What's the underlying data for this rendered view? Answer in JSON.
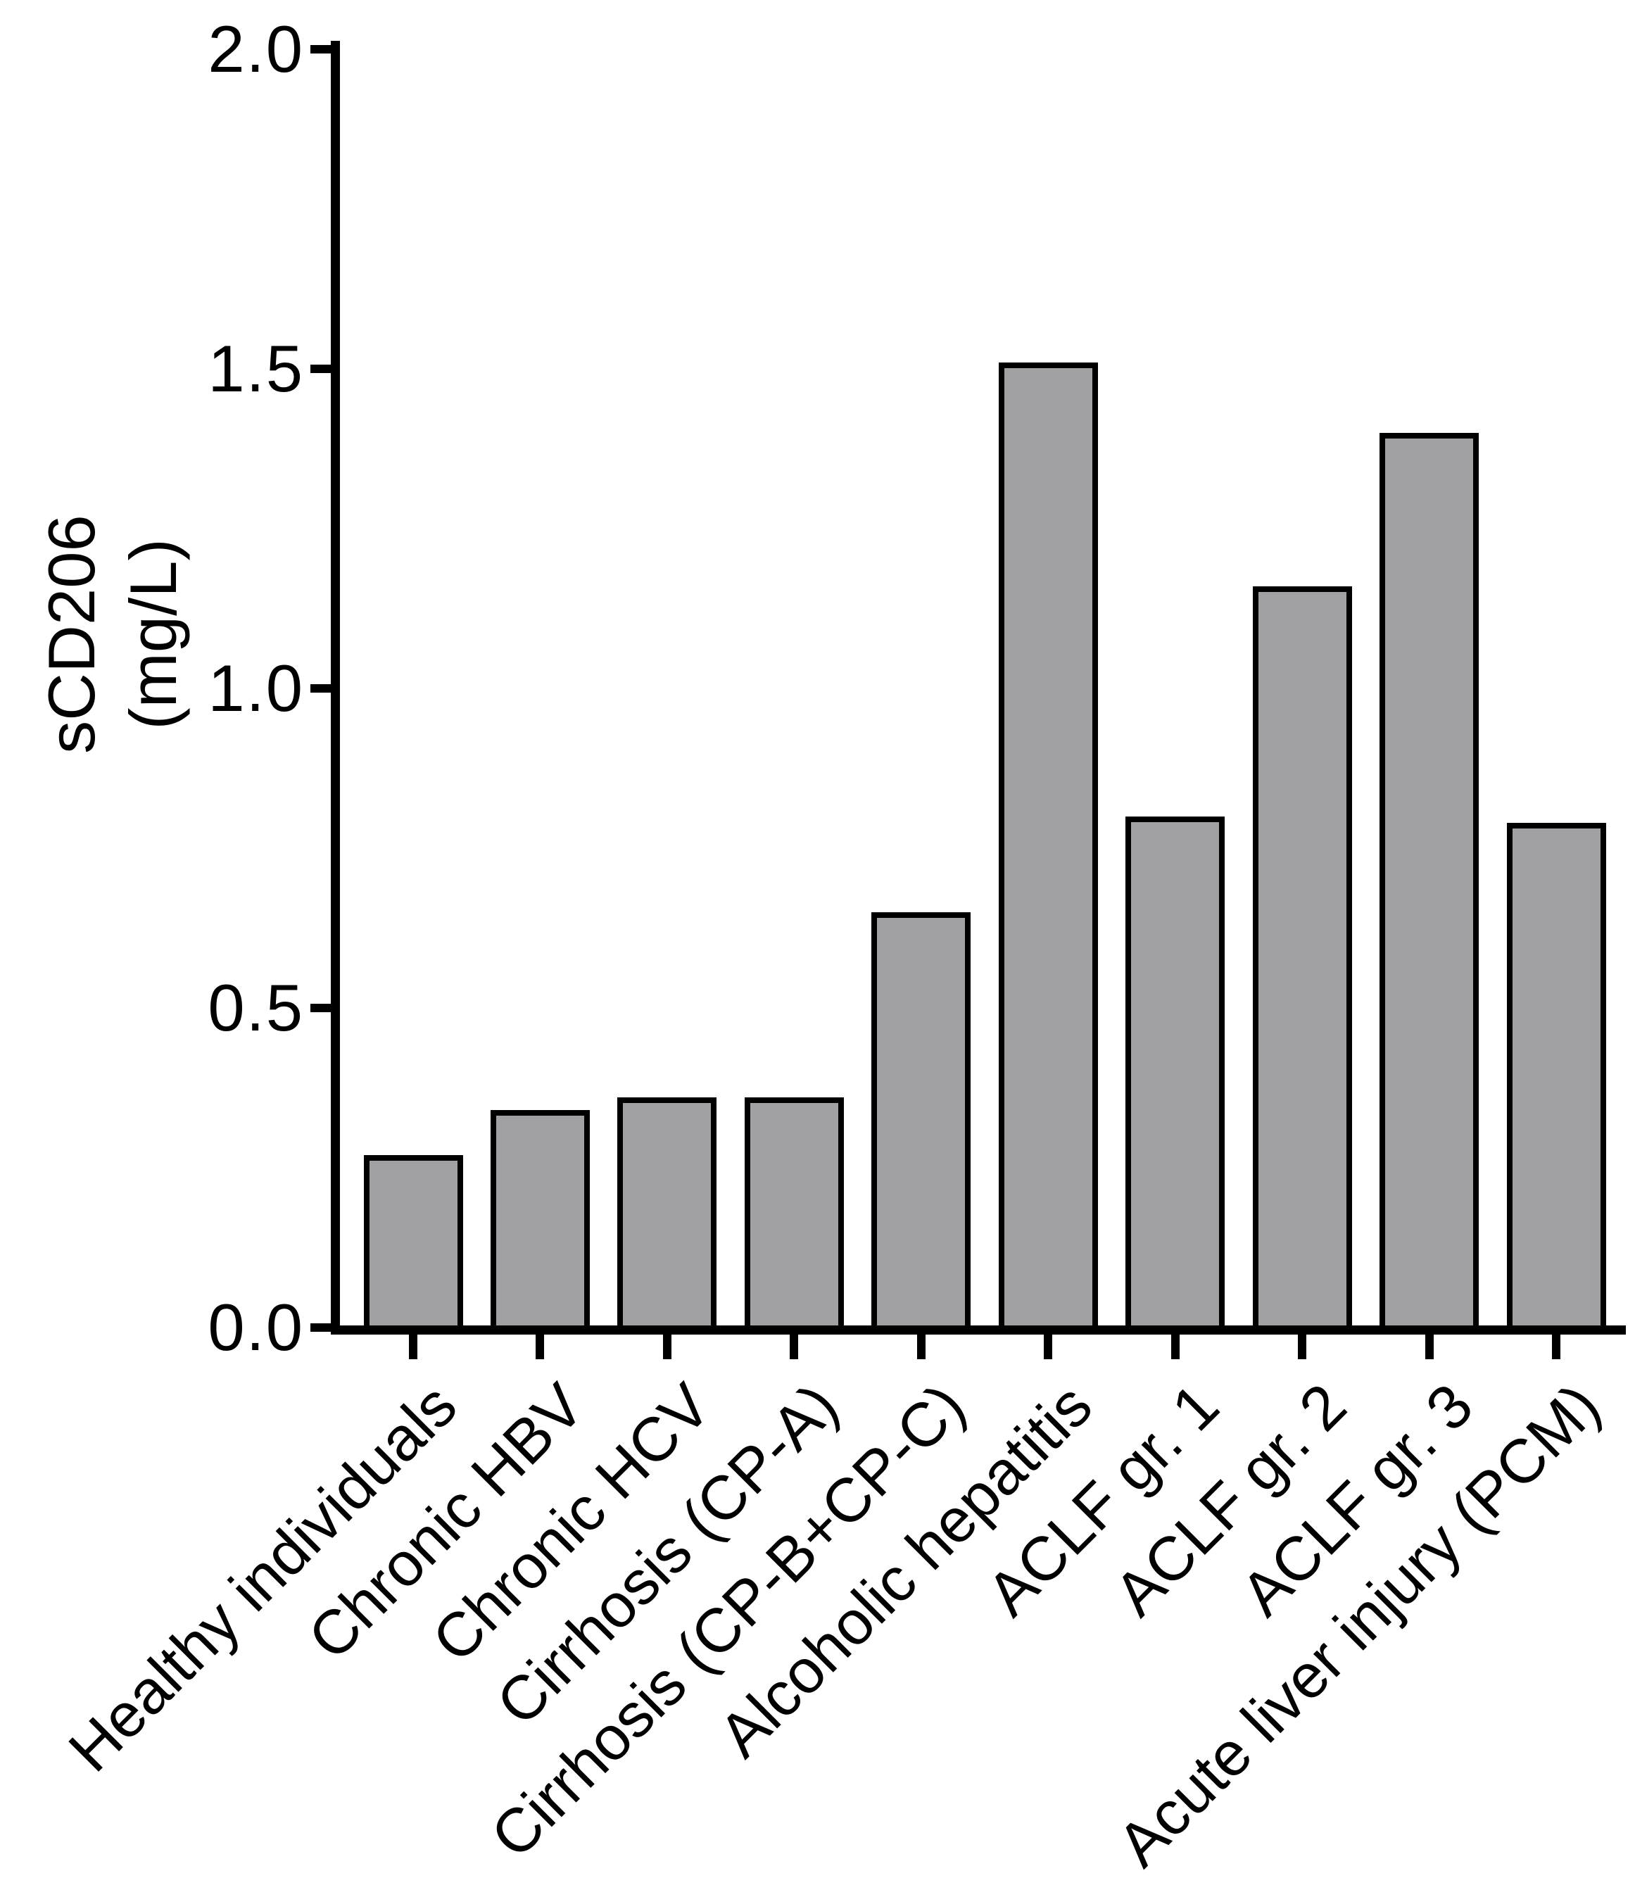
{
  "chart_data": {
    "type": "bar",
    "title": "",
    "ylabel_lines": [
      "sCD206",
      "(mg/L)"
    ],
    "xlabel": "",
    "categories": [
      "Healthy individuals",
      "Chronic HBV",
      "Chronic HCV",
      "Cirrhosis (CP-A)",
      "Cirrhosis (CP-B+CP-C)",
      "Alcoholic hepatitis",
      "ACLF gr. 1",
      "ACLF gr. 2",
      "ACLF gr. 3",
      "Acute liver injury (PCM)"
    ],
    "values": [
      0.27,
      0.34,
      0.36,
      0.36,
      0.65,
      1.51,
      0.8,
      1.16,
      1.4,
      0.79
    ],
    "ylim": [
      0.0,
      2.0
    ],
    "y_ticks": [
      0.0,
      0.5,
      1.0,
      1.5,
      2.0
    ],
    "y_tick_labels": [
      "0.0",
      "0.5",
      "1.0",
      "1.5",
      "2.0"
    ],
    "x_tick_rotation_deg": 45,
    "grid": false,
    "legend": "none",
    "bar_fill_color": "#a1a1a4",
    "bar_border_color": "#000000",
    "axis_color": "#000000",
    "background_color": "#ffffff"
  }
}
